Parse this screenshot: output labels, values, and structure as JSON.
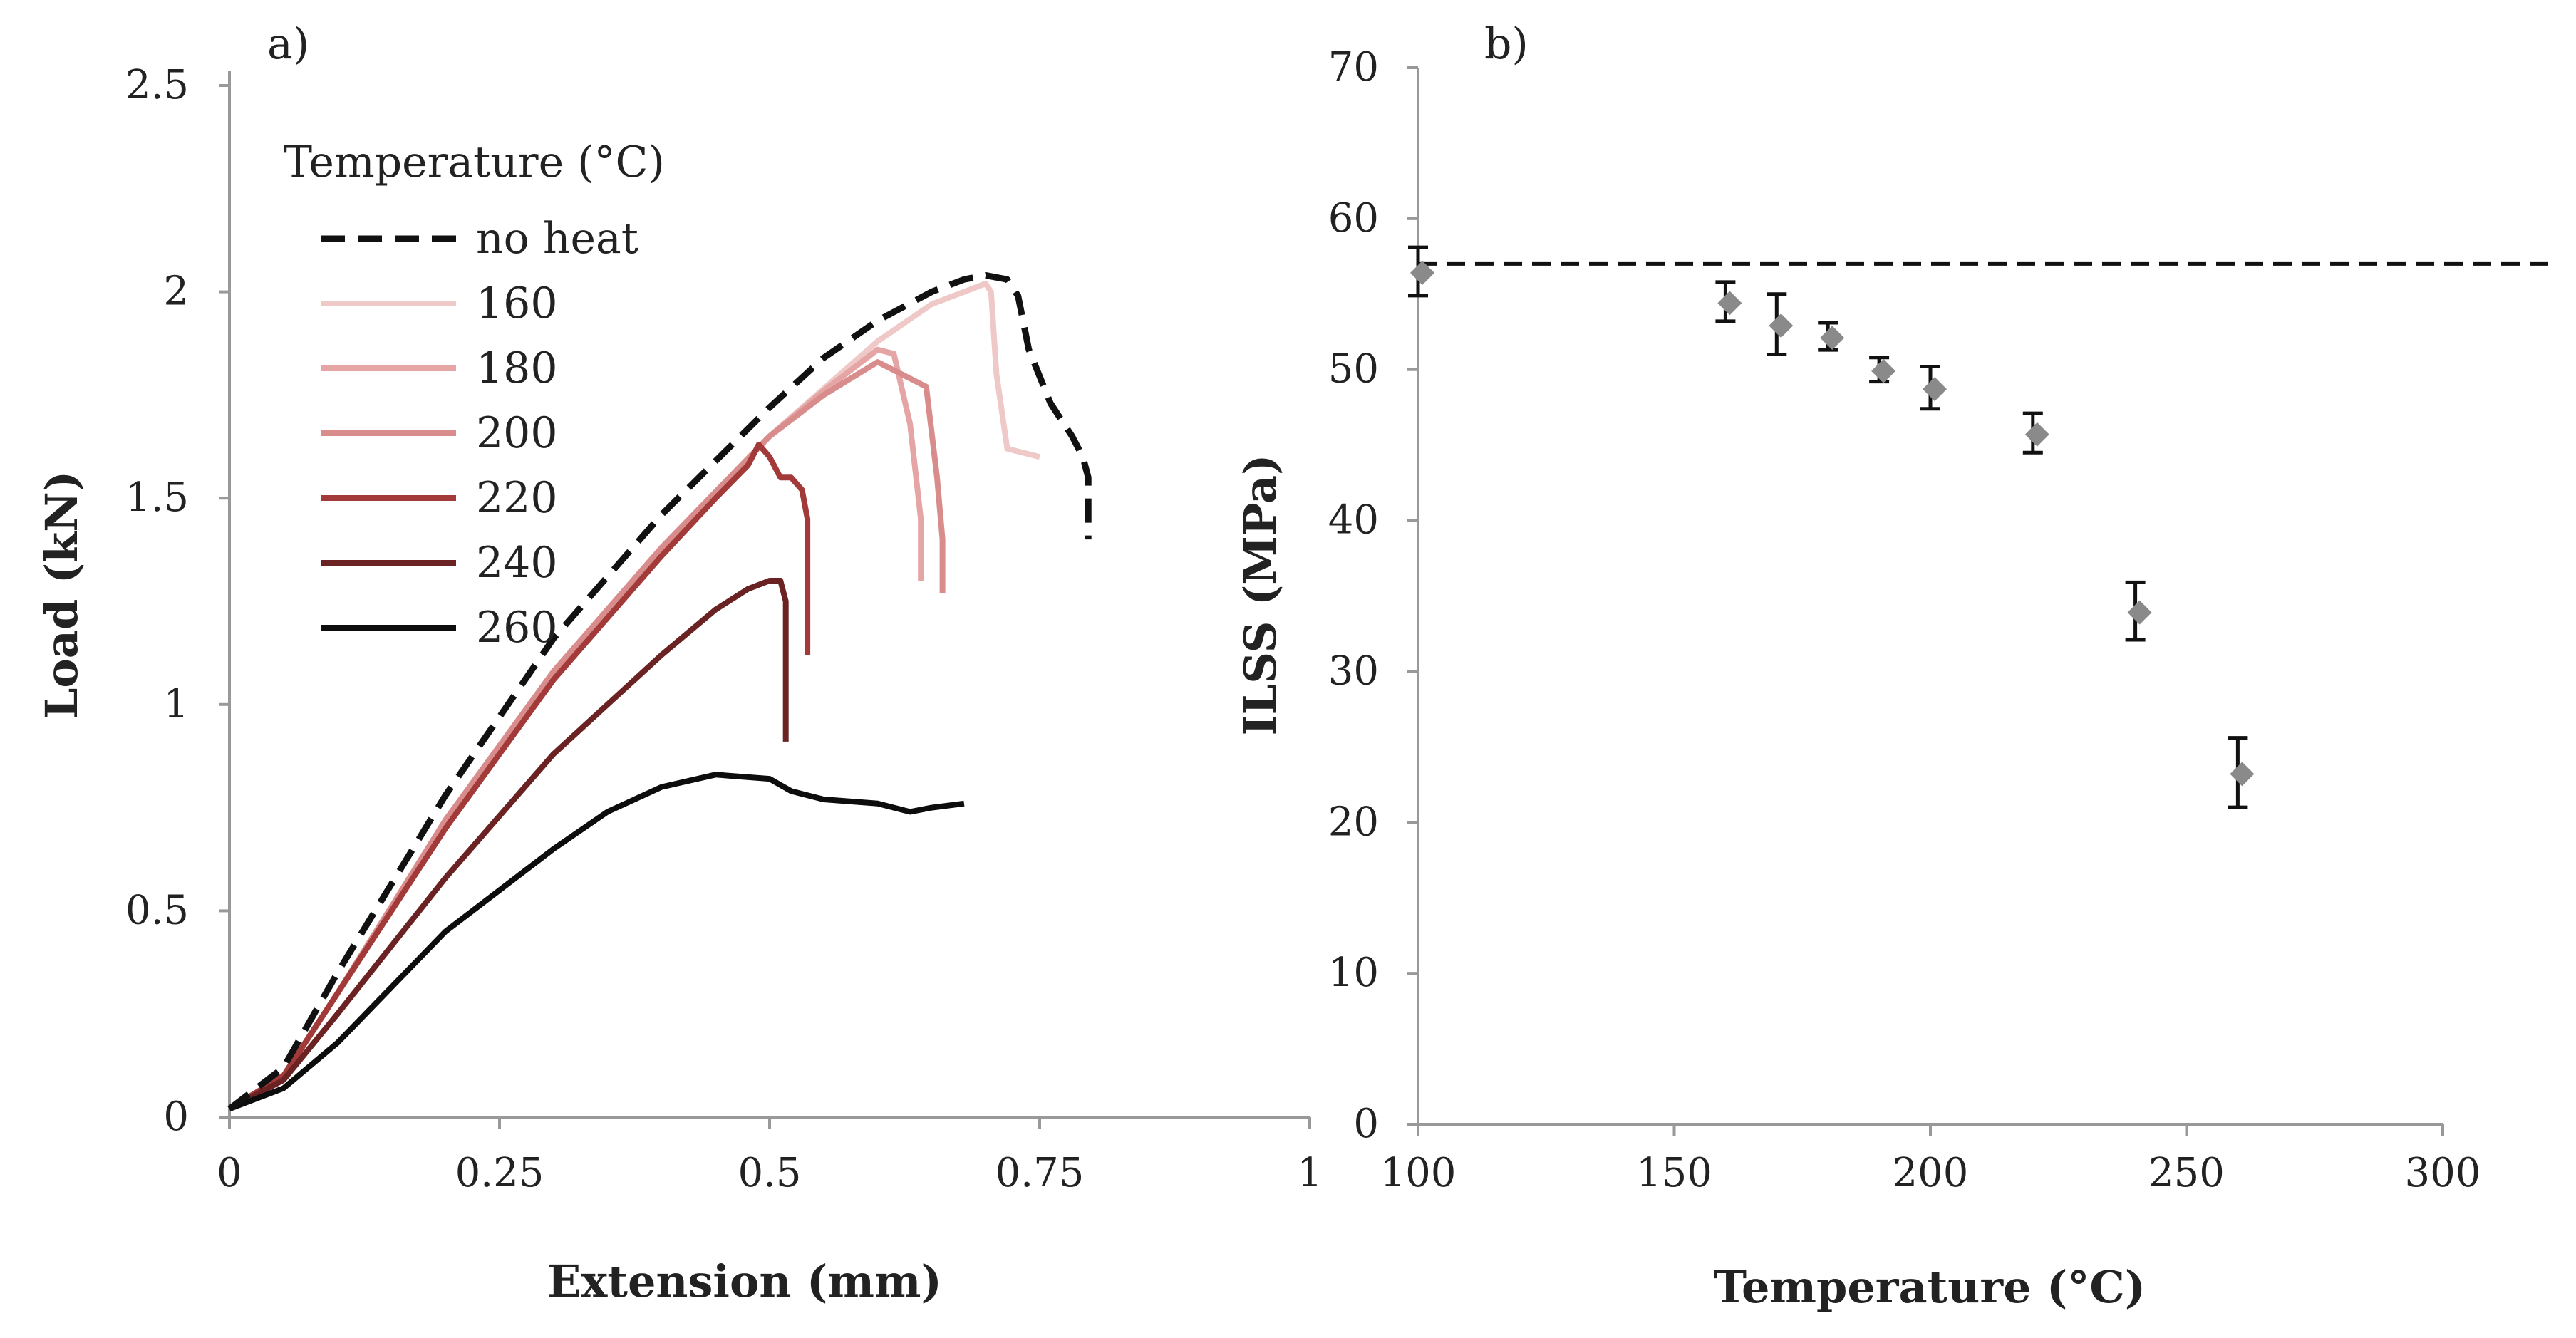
{
  "chart_data": [
    {
      "type": "line",
      "panel_label": "a)",
      "xlabel": "Extension (mm)",
      "ylabel": "Load (kN)",
      "xlim": [
        0,
        1
      ],
      "ylim": [
        0,
        2.5
      ],
      "xticks": [
        "0",
        "0.25",
        "0.5",
        "0.75",
        "1"
      ],
      "yticks": [
        "0",
        "0.5",
        "1",
        "1.5",
        "2",
        "2.5"
      ],
      "grid": false,
      "legend": {
        "title": "Temperature (°C)",
        "position": "top-left"
      },
      "series": [
        {
          "name": "no heat",
          "color": "#111111",
          "dash": true,
          "x": [
            0,
            0.05,
            0.1,
            0.2,
            0.3,
            0.4,
            0.5,
            0.55,
            0.6,
            0.65,
            0.68,
            0.7,
            0.72,
            0.73,
            0.74,
            0.76,
            0.78,
            0.79,
            0.795,
            0.795
          ],
          "y": [
            0.02,
            0.12,
            0.35,
            0.78,
            1.16,
            1.46,
            1.72,
            1.84,
            1.93,
            2.0,
            2.03,
            2.04,
            2.03,
            1.99,
            1.86,
            1.73,
            1.65,
            1.6,
            1.55,
            1.4
          ]
        },
        {
          "name": "160",
          "color": "#efc8c8",
          "dash": false,
          "x": [
            0,
            0.05,
            0.1,
            0.2,
            0.3,
            0.4,
            0.5,
            0.6,
            0.65,
            0.68,
            0.7,
            0.705,
            0.71,
            0.72,
            0.75
          ],
          "y": [
            0.02,
            0.1,
            0.3,
            0.72,
            1.08,
            1.38,
            1.65,
            1.88,
            1.97,
            2.0,
            2.02,
            2.0,
            1.8,
            1.62,
            1.6
          ]
        },
        {
          "name": "180",
          "color": "#e6a5a5",
          "dash": false,
          "x": [
            0,
            0.05,
            0.1,
            0.2,
            0.3,
            0.4,
            0.5,
            0.55,
            0.58,
            0.6,
            0.615,
            0.63,
            0.64,
            0.64
          ],
          "y": [
            0.02,
            0.1,
            0.3,
            0.72,
            1.08,
            1.38,
            1.65,
            1.76,
            1.82,
            1.86,
            1.85,
            1.68,
            1.45,
            1.3
          ]
        },
        {
          "name": "200",
          "color": "#d98c8c",
          "dash": false,
          "x": [
            0,
            0.05,
            0.1,
            0.2,
            0.3,
            0.4,
            0.5,
            0.55,
            0.6,
            0.63,
            0.645,
            0.655,
            0.66,
            0.66
          ],
          "y": [
            0.02,
            0.1,
            0.3,
            0.72,
            1.08,
            1.38,
            1.65,
            1.75,
            1.83,
            1.79,
            1.77,
            1.55,
            1.4,
            1.27
          ]
        },
        {
          "name": "220",
          "color": "#a33a3a",
          "dash": false,
          "x": [
            0,
            0.05,
            0.1,
            0.2,
            0.3,
            0.4,
            0.45,
            0.48,
            0.49,
            0.5,
            0.51,
            0.52,
            0.53,
            0.535,
            0.535
          ],
          "y": [
            0.02,
            0.1,
            0.3,
            0.7,
            1.06,
            1.36,
            1.5,
            1.58,
            1.63,
            1.6,
            1.55,
            1.55,
            1.52,
            1.45,
            1.12
          ]
        },
        {
          "name": "240",
          "color": "#6b2222",
          "dash": false,
          "x": [
            0,
            0.05,
            0.1,
            0.2,
            0.3,
            0.4,
            0.45,
            0.48,
            0.5,
            0.51,
            0.515,
            0.515
          ],
          "y": [
            0.02,
            0.09,
            0.25,
            0.58,
            0.88,
            1.12,
            1.23,
            1.28,
            1.3,
            1.3,
            1.25,
            0.91
          ]
        },
        {
          "name": "260",
          "color": "#0d0d0d",
          "dash": false,
          "x": [
            0,
            0.05,
            0.1,
            0.2,
            0.3,
            0.35,
            0.4,
            0.45,
            0.5,
            0.52,
            0.55,
            0.6,
            0.63,
            0.65,
            0.68
          ],
          "y": [
            0.02,
            0.07,
            0.18,
            0.45,
            0.65,
            0.74,
            0.8,
            0.83,
            0.82,
            0.79,
            0.77,
            0.76,
            0.74,
            0.75,
            0.76
          ]
        }
      ]
    },
    {
      "type": "scatter",
      "panel_label": "b)",
      "xlabel": "Temperature (°C)",
      "ylabel": "ILSS (MPa)",
      "xlim": [
        100,
        300
      ],
      "ylim": [
        0,
        70
      ],
      "xticks": [
        "100",
        "150",
        "200",
        "250",
        "300"
      ],
      "yticks": [
        "0",
        "10",
        "20",
        "30",
        "40",
        "50",
        "60",
        "70"
      ],
      "grid": false,
      "reference_line": {
        "y": 57,
        "style": "dashed",
        "color": "#111111"
      },
      "marker_color": "#8a8a8a",
      "errorbar_color": "#111111",
      "points": [
        {
          "x": 100,
          "y": 56.5,
          "err": 1.6
        },
        {
          "x": 160,
          "y": 54.5,
          "err": 1.3
        },
        {
          "x": 170,
          "y": 53.0,
          "err": 2.0
        },
        {
          "x": 180,
          "y": 52.2,
          "err": 0.9
        },
        {
          "x": 190,
          "y": 50.0,
          "err": 0.8
        },
        {
          "x": 200,
          "y": 48.8,
          "err": 1.4
        },
        {
          "x": 220,
          "y": 45.8,
          "err": 1.3
        },
        {
          "x": 240,
          "y": 34.0,
          "err": 1.9
        },
        {
          "x": 260,
          "y": 23.3,
          "err": 2.3
        }
      ]
    }
  ]
}
